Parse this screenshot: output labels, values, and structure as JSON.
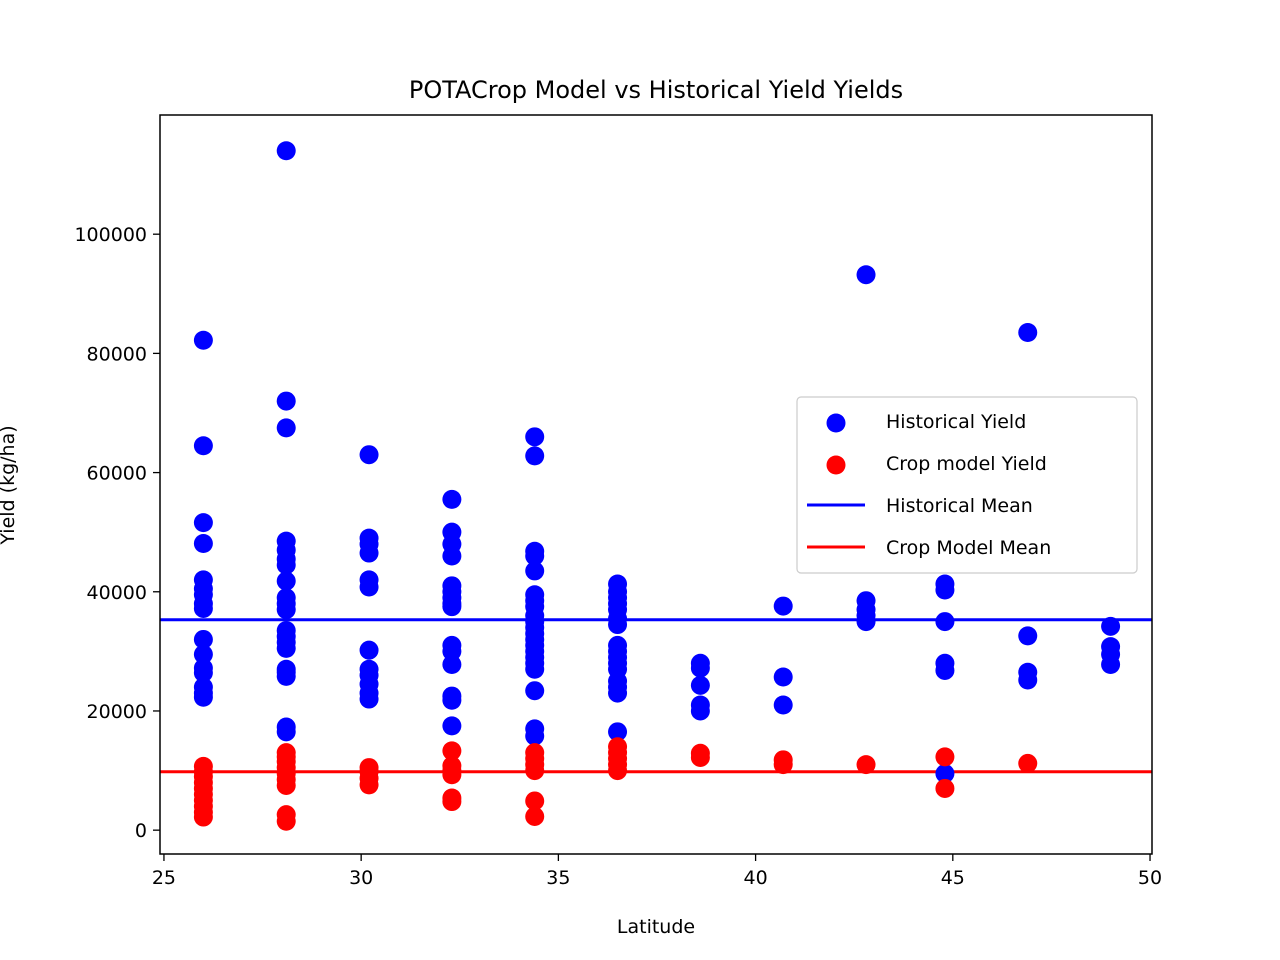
{
  "chart_data": {
    "type": "scatter",
    "title": "POTACrop Model vs Historical Yield Yields",
    "xlabel": "Latitude",
    "ylabel": "Yield (kg/ha)",
    "xlim": [
      24.9,
      50.05
    ],
    "ylim": [
      -4000,
      120000
    ],
    "xticks": [
      25,
      30,
      35,
      40,
      45,
      50
    ],
    "yticks": [
      0,
      20000,
      40000,
      60000,
      80000,
      100000
    ],
    "grid": false,
    "legend_position": "center-right",
    "series": [
      {
        "name": "Historical Yield",
        "kind": "scatter",
        "color": "#0000ff",
        "points": [
          [
            26.0,
            82200
          ],
          [
            26.0,
            64500
          ],
          [
            26.0,
            51600
          ],
          [
            26.0,
            48100
          ],
          [
            26.0,
            42000
          ],
          [
            26.0,
            40500
          ],
          [
            26.0,
            39500
          ],
          [
            26.0,
            38000
          ],
          [
            26.0,
            37200
          ],
          [
            26.0,
            32000
          ],
          [
            26.0,
            29500
          ],
          [
            26.0,
            27200
          ],
          [
            26.0,
            26400
          ],
          [
            26.0,
            24000
          ],
          [
            26.0,
            23000
          ],
          [
            26.0,
            22300
          ],
          [
            28.1,
            114000
          ],
          [
            28.1,
            72000
          ],
          [
            28.1,
            67500
          ],
          [
            28.1,
            48500
          ],
          [
            28.1,
            47000
          ],
          [
            28.1,
            45500
          ],
          [
            28.1,
            44500
          ],
          [
            28.1,
            41800
          ],
          [
            28.1,
            39000
          ],
          [
            28.1,
            38000
          ],
          [
            28.1,
            37000
          ],
          [
            28.1,
            33500
          ],
          [
            28.1,
            32500
          ],
          [
            28.1,
            31500
          ],
          [
            28.1,
            30500
          ],
          [
            28.1,
            27000
          ],
          [
            28.1,
            26500
          ],
          [
            28.1,
            25800
          ],
          [
            28.1,
            17300
          ],
          [
            28.1,
            16500
          ],
          [
            30.2,
            63000
          ],
          [
            30.2,
            49000
          ],
          [
            30.2,
            48000
          ],
          [
            30.2,
            46500
          ],
          [
            30.2,
            42000
          ],
          [
            30.2,
            40800
          ],
          [
            30.2,
            30200
          ],
          [
            30.2,
            27000
          ],
          [
            30.2,
            26000
          ],
          [
            30.2,
            24500
          ],
          [
            30.2,
            23000
          ],
          [
            30.2,
            22000
          ],
          [
            32.3,
            55500
          ],
          [
            32.3,
            50000
          ],
          [
            32.3,
            48000
          ],
          [
            32.3,
            46000
          ],
          [
            32.3,
            41000
          ],
          [
            32.3,
            40000
          ],
          [
            32.3,
            39000
          ],
          [
            32.3,
            38000
          ],
          [
            32.3,
            37500
          ],
          [
            32.3,
            31000
          ],
          [
            32.3,
            30000
          ],
          [
            32.3,
            27800
          ],
          [
            32.3,
            22500
          ],
          [
            32.3,
            21800
          ],
          [
            32.3,
            17500
          ],
          [
            34.4,
            66000
          ],
          [
            34.4,
            62800
          ],
          [
            34.4,
            46800
          ],
          [
            34.4,
            46000
          ],
          [
            34.4,
            43500
          ],
          [
            34.4,
            39500
          ],
          [
            34.4,
            38500
          ],
          [
            34.4,
            37500
          ],
          [
            34.4,
            36000
          ],
          [
            34.4,
            35000
          ],
          [
            34.4,
            34000
          ],
          [
            34.4,
            33000
          ],
          [
            34.4,
            32000
          ],
          [
            34.4,
            31000
          ],
          [
            34.4,
            30000
          ],
          [
            34.4,
            29000
          ],
          [
            34.4,
            28000
          ],
          [
            34.4,
            27000
          ],
          [
            34.4,
            23400
          ],
          [
            34.4,
            17000
          ],
          [
            34.4,
            15800
          ],
          [
            36.5,
            41300
          ],
          [
            36.5,
            40000
          ],
          [
            36.5,
            39000
          ],
          [
            36.5,
            38000
          ],
          [
            36.5,
            37000
          ],
          [
            36.5,
            35500
          ],
          [
            36.5,
            34500
          ],
          [
            36.5,
            31000
          ],
          [
            36.5,
            30000
          ],
          [
            36.5,
            29000
          ],
          [
            36.5,
            28000
          ],
          [
            36.5,
            27000
          ],
          [
            36.5,
            25000
          ],
          [
            36.5,
            24000
          ],
          [
            36.5,
            23000
          ],
          [
            36.5,
            16500
          ],
          [
            38.6,
            28000
          ],
          [
            38.6,
            27200
          ],
          [
            38.6,
            24300
          ],
          [
            38.6,
            21000
          ],
          [
            38.6,
            20000
          ],
          [
            40.7,
            37600
          ],
          [
            40.7,
            25700
          ],
          [
            40.7,
            21000
          ],
          [
            42.8,
            93200
          ],
          [
            42.8,
            38500
          ],
          [
            42.8,
            37000
          ],
          [
            42.8,
            36000
          ],
          [
            42.8,
            35000
          ],
          [
            44.8,
            41300
          ],
          [
            44.8,
            40300
          ],
          [
            44.8,
            35000
          ],
          [
            44.8,
            28000
          ],
          [
            44.8,
            26800
          ],
          [
            44.8,
            9500
          ],
          [
            46.9,
            83500
          ],
          [
            46.9,
            32600
          ],
          [
            46.9,
            26500
          ],
          [
            46.9,
            25200
          ],
          [
            49.0,
            34200
          ],
          [
            49.0,
            30800
          ],
          [
            49.0,
            29500
          ],
          [
            49.0,
            27800
          ]
        ]
      },
      {
        "name": "Crop model Yield",
        "kind": "scatter",
        "color": "#ff0000",
        "points": [
          [
            26.0,
            10700
          ],
          [
            26.0,
            9800
          ],
          [
            26.0,
            9000
          ],
          [
            26.0,
            8000
          ],
          [
            26.0,
            7000
          ],
          [
            26.0,
            6000
          ],
          [
            26.0,
            5000
          ],
          [
            26.0,
            4000
          ],
          [
            26.0,
            3000
          ],
          [
            26.0,
            2200
          ],
          [
            28.1,
            13000
          ],
          [
            28.1,
            12300
          ],
          [
            28.1,
            11500
          ],
          [
            28.1,
            10500
          ],
          [
            28.1,
            9500
          ],
          [
            28.1,
            8500
          ],
          [
            28.1,
            7500
          ],
          [
            28.1,
            2600
          ],
          [
            28.1,
            1500
          ],
          [
            30.2,
            10500
          ],
          [
            30.2,
            9800
          ],
          [
            30.2,
            8700
          ],
          [
            30.2,
            7600
          ],
          [
            32.3,
            13300
          ],
          [
            32.3,
            10800
          ],
          [
            32.3,
            10000
          ],
          [
            32.3,
            9300
          ],
          [
            32.3,
            5400
          ],
          [
            32.3,
            4800
          ],
          [
            34.4,
            13000
          ],
          [
            34.4,
            12000
          ],
          [
            34.4,
            11000
          ],
          [
            34.4,
            10000
          ],
          [
            34.4,
            4900
          ],
          [
            34.4,
            2300
          ],
          [
            36.5,
            14000
          ],
          [
            36.5,
            13000
          ],
          [
            36.5,
            12000
          ],
          [
            36.5,
            11000
          ],
          [
            36.5,
            10000
          ],
          [
            38.6,
            12900
          ],
          [
            38.6,
            12200
          ],
          [
            40.7,
            11800
          ],
          [
            40.7,
            11000
          ],
          [
            42.8,
            11000
          ],
          [
            44.8,
            12300
          ],
          [
            44.8,
            7000
          ],
          [
            46.9,
            11200
          ]
        ]
      },
      {
        "name": "Historical Mean",
        "kind": "hline",
        "color": "#0000ff",
        "y": 35300
      },
      {
        "name": "Crop Model Mean",
        "kind": "hline",
        "color": "#ff0000",
        "y": 9800
      }
    ]
  }
}
